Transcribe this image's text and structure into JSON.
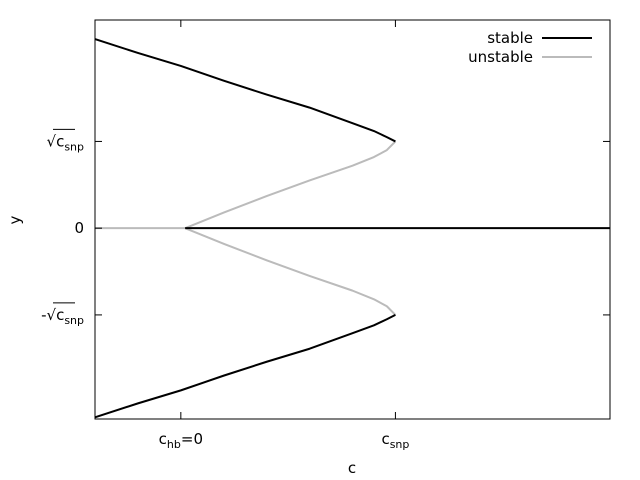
{
  "chart_data": {
    "type": "line",
    "xlabel": "c",
    "ylabel": "y",
    "xlim": [
      -1,
      5
    ],
    "ylim": [
      -2.2,
      2.4
    ],
    "grid": false,
    "legend_position": "top-right",
    "x_ticks": [
      {
        "value": 0,
        "label": "c",
        "sub": "hb",
        "suffix": "=0"
      },
      {
        "value": 2.5,
        "label": "c",
        "sub": "snp",
        "suffix": ""
      }
    ],
    "y_ticks": [
      {
        "value": 1,
        "prefix": "√",
        "label": "c",
        "sub": "snp"
      },
      {
        "value": 0,
        "prefix": "",
        "label": "0",
        "sub": ""
      },
      {
        "value": -1,
        "prefix": "-√",
        "label": "c",
        "sub": "snp"
      }
    ],
    "legend": [
      {
        "label": "stable",
        "color": "#000000"
      },
      {
        "label": "unstable",
        "color": "#bbbbbb"
      }
    ],
    "series": [
      {
        "name": "stable",
        "color": "#000000",
        "segments": [
          {
            "x": [
              -1,
              -0.5,
              0,
              0.5,
              1,
              1.5,
              2,
              2.25,
              2.4,
              2.5
            ],
            "y": [
              2.18,
              2.02,
              1.87,
              1.7,
              1.54,
              1.39,
              1.21,
              1.12,
              1.05,
              1.0
            ]
          },
          {
            "x": [
              -1,
              -0.5,
              0,
              0.5,
              1,
              1.5,
              2,
              2.25,
              2.4,
              2.5
            ],
            "y": [
              -2.18,
              -2.02,
              -1.87,
              -1.7,
              -1.54,
              -1.39,
              -1.21,
              -1.12,
              -1.05,
              -1.0
            ]
          },
          {
            "x": [
              0.05,
              5
            ],
            "y": [
              0,
              0
            ]
          }
        ]
      },
      {
        "name": "unstable",
        "color": "#bbbbbb",
        "segments": [
          {
            "x": [
              -1,
              0.05
            ],
            "y": [
              0,
              0
            ]
          },
          {
            "x": [
              0.05,
              0.5,
              1,
              1.5,
              2,
              2.25,
              2.4,
              2.5
            ],
            "y": [
              0.0,
              0.18,
              0.37,
              0.55,
              0.72,
              0.82,
              0.9,
              1.0
            ]
          },
          {
            "x": [
              0.05,
              0.5,
              1,
              1.5,
              2,
              2.25,
              2.4,
              2.5
            ],
            "y": [
              0.0,
              -0.18,
              -0.37,
              -0.55,
              -0.72,
              -0.82,
              -0.9,
              -1.0
            ]
          }
        ]
      }
    ]
  }
}
